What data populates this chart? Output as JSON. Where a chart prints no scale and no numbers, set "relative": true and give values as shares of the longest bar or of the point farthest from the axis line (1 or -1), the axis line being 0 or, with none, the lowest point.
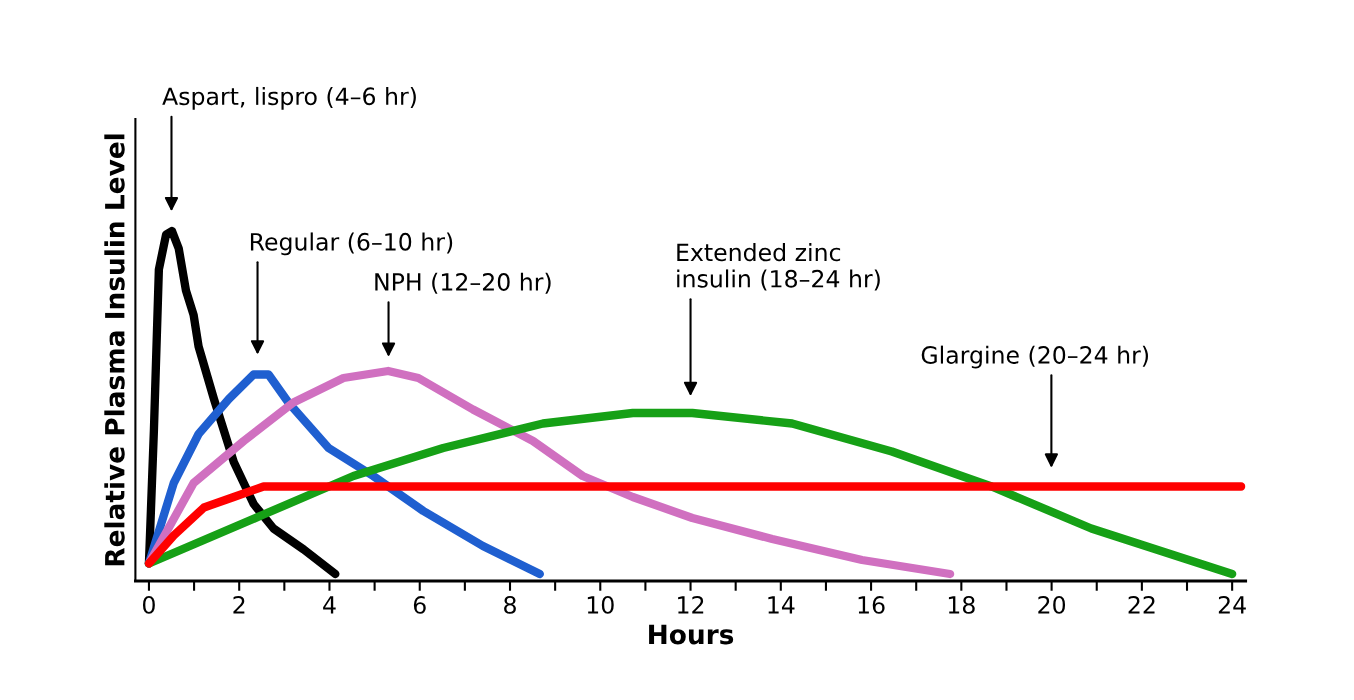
{
  "chart_data": {
    "type": "line",
    "relative": true,
    "xlabel": "Hours",
    "ylabel": "Relative Plasma Insulin Level",
    "xlim": [
      -0.3,
      24.3
    ],
    "xticks": [
      0,
      {
        "value": 1,
        "label": null
      },
      2,
      {
        "value": 3,
        "label": null
      },
      4,
      {
        "value": 5,
        "label": null
      },
      6,
      {
        "value": 7,
        "label": null
      },
      8,
      {
        "value": 9,
        "label": null
      },
      10,
      {
        "value": 11,
        "label": null
      },
      12,
      {
        "value": 13,
        "label": null
      },
      14,
      {
        "value": 15,
        "label": null
      },
      16,
      {
        "value": 17,
        "label": null
      },
      18,
      {
        "value": 19,
        "label": null
      },
      20,
      {
        "value": 21,
        "label": null
      },
      22,
      {
        "value": 23,
        "label": null
      },
      24
    ],
    "grid": false,
    "legend": false,
    "marker": "none",
    "line_style": "solid",
    "series": [
      {
        "color": "#000000",
        "x": [
          0,
          0.11,
          0.22,
          0.38,
          0.51,
          0.66,
          0.82,
          0.99,
          1.1,
          1.44,
          1.88,
          2.32,
          2.76,
          3.43,
          4.13
        ],
        "values": [
          0.05,
          0.43,
          0.89,
          0.99,
          1.0,
          0.95,
          0.83,
          0.76,
          0.67,
          0.52,
          0.34,
          0.22,
          0.15,
          0.09,
          0.02
        ]
      },
      {
        "color": "#1f5fd0",
        "x": [
          0,
          0.55,
          1.1,
          1.77,
          2.32,
          2.65,
          3.09,
          3.98,
          4.97,
          6.08,
          7.4,
          8.66
        ],
        "values": [
          0.05,
          0.28,
          0.42,
          0.52,
          0.59,
          0.59,
          0.51,
          0.38,
          0.3,
          0.2,
          0.1,
          0.02
        ]
      },
      {
        "color": "#d070c0",
        "x": [
          0,
          0.99,
          2.1,
          3.2,
          4.31,
          5.3,
          5.97,
          7.18,
          8.51,
          9.61,
          10.72,
          12.04,
          13.81,
          15.8,
          17.75
        ],
        "values": [
          0.05,
          0.28,
          0.4,
          0.51,
          0.58,
          0.6,
          0.58,
          0.49,
          0.4,
          0.3,
          0.24,
          0.18,
          0.12,
          0.06,
          0.02
        ]
      },
      {
        "color": "#16a016",
        "x": [
          0,
          2.54,
          4.53,
          6.52,
          8.73,
          10.72,
          12.04,
          14.25,
          16.46,
          18.67,
          20.88,
          24
        ],
        "values": [
          0.05,
          0.19,
          0.3,
          0.38,
          0.45,
          0.48,
          0.48,
          0.45,
          0.37,
          0.27,
          0.15,
          0.02
        ]
      },
      {
        "color": "#ff0000",
        "x": [
          0,
          0.55,
          1.22,
          1.88,
          2.54,
          4.31,
          12.04,
          18.67,
          24.2
        ],
        "values": [
          0.05,
          0.13,
          0.21,
          0.24,
          0.27,
          0.27,
          0.27,
          0.27,
          0.27
        ]
      }
    ],
    "annotations": [
      "Aspart, lispro (4–6 hr)",
      "Regular (6–10 hr)",
      "NPH (12–20 hr)",
      "Extended zinc\ninsulin (18–24 hr)",
      "Glargine (20–24 hr)"
    ]
  }
}
